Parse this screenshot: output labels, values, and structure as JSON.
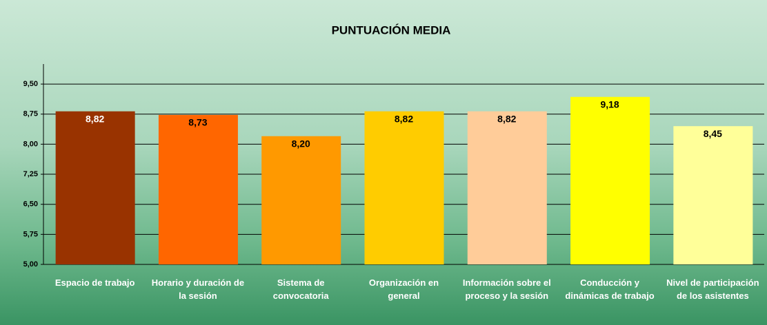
{
  "chart_data": {
    "type": "bar",
    "title": "PUNTUACIÓN MEDIA",
    "categories": [
      "Espacio de trabajo",
      "Horario y duración de la sesión",
      "Sistema de convocatoria",
      "Organización en general",
      "Información sobre el proceso y la sesión",
      "Conducción y dinámicas de trabajo",
      "Nivel de participación de los asistentes"
    ],
    "values": [
      8.82,
      8.73,
      8.2,
      8.82,
      8.82,
      9.18,
      8.45
    ],
    "value_labels": [
      "8,82",
      "8,73",
      "8,20",
      "8,82",
      "8,82",
      "9,18",
      "8,45"
    ],
    "colors": [
      "#993300",
      "#ff6600",
      "#ff9900",
      "#ffcc00",
      "#ffcc99",
      "#ffff00",
      "#ffff99"
    ],
    "ylim": [
      5,
      10
    ],
    "yticks": [
      {
        "value": 5,
        "label": "5,00"
      },
      {
        "value": 5.75,
        "label": "5,75"
      },
      {
        "value": 6.5,
        "label": "6,50"
      },
      {
        "value": 7.25,
        "label": "7,25"
      },
      {
        "value": 8,
        "label": "8,00"
      },
      {
        "value": 8.75,
        "label": "8,75"
      },
      {
        "value": 9.5,
        "label": "9,50"
      }
    ],
    "grid": true
  }
}
